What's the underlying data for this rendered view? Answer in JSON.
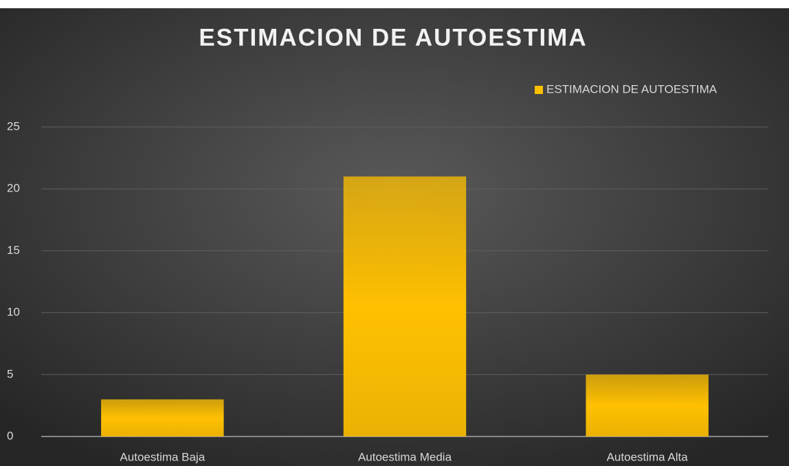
{
  "chart_data": {
    "type": "bar",
    "title": "ESTIMACION DE AUTOESTIMA",
    "categories": [
      "Autoestima Baja",
      "Autoestima Media",
      "Autoestima Alta"
    ],
    "series": [
      {
        "name": "ESTIMACION DE AUTOESTIMA",
        "color": "#ffc000",
        "values": [
          3,
          21,
          5
        ]
      }
    ],
    "ylim": [
      0,
      25
    ],
    "yticks": [
      0,
      5,
      10,
      15,
      20,
      25
    ],
    "grid": true,
    "legend": "top-right"
  }
}
